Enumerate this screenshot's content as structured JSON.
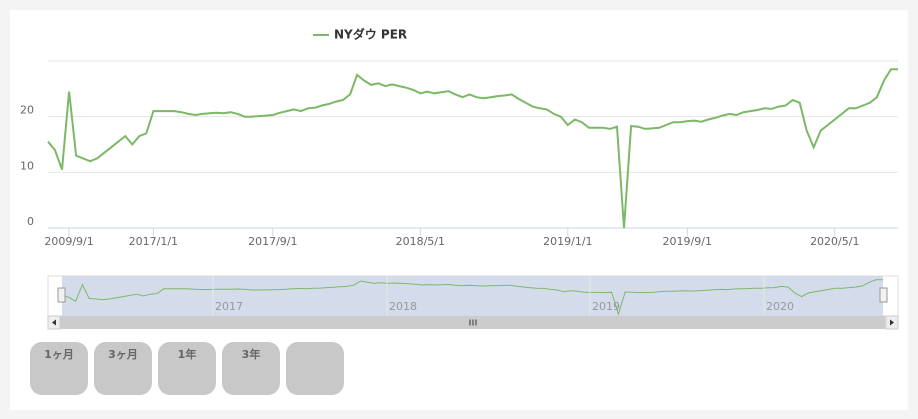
{
  "chart_data": {
    "type": "line",
    "legend_position": "top",
    "grid": true,
    "ylim": [
      0,
      30
    ],
    "yticks": [
      0,
      10,
      20
    ],
    "categories": [
      null,
      null,
      null,
      "2009/9/1",
      null,
      null,
      null,
      null,
      null,
      null,
      null,
      null,
      null,
      null,
      null,
      "2017/1/1",
      null,
      null,
      null,
      null,
      null,
      null,
      null,
      null,
      null,
      null,
      null,
      null,
      null,
      null,
      null,
      null,
      "2017/9/1",
      null,
      null,
      null,
      null,
      null,
      null,
      null,
      null,
      null,
      null,
      null,
      null,
      null,
      null,
      null,
      null,
      null,
      null,
      null,
      null,
      "2018/5/1",
      null,
      null,
      null,
      null,
      null,
      null,
      null,
      null,
      null,
      null,
      null,
      null,
      null,
      null,
      null,
      null,
      null,
      null,
      null,
      null,
      "2019/1/1",
      null,
      null,
      null,
      null,
      null,
      null,
      null,
      null,
      null,
      null,
      null,
      null,
      null,
      null,
      null,
      null,
      "2019/9/1",
      null,
      null,
      null,
      null,
      null,
      null,
      null,
      null,
      null,
      null,
      null,
      null,
      null,
      null,
      null,
      null,
      null,
      null,
      null,
      null,
      "2020/5/1",
      null,
      null,
      null,
      null,
      null,
      null,
      null,
      null,
      null
    ],
    "series": [
      {
        "name": "NYダウ PER",
        "color": "#7cb867",
        "values": [
          15.5,
          14,
          10.5,
          24.5,
          13,
          12.5,
          12,
          12.5,
          13.5,
          14.5,
          15.5,
          16.5,
          15,
          16.5,
          17,
          21,
          21,
          21,
          21,
          20.8,
          20.5,
          20.3,
          20.5,
          20.6,
          20.7,
          20.6,
          20.8,
          20.5,
          20,
          20,
          20.1,
          20.2,
          20.3,
          20.7,
          21,
          21.3,
          21,
          21.5,
          21.6,
          22,
          22.3,
          22.7,
          23,
          24,
          27.5,
          26.5,
          25.7,
          26,
          25.5,
          25.8,
          25.5,
          25.2,
          24.8,
          24.2,
          24.5,
          24.2,
          24.4,
          24.6,
          24,
          23.5,
          24,
          23.5,
          23.3,
          23.5,
          23.7,
          23.8,
          24,
          23.2,
          22.5,
          21.8,
          21.5,
          21.3,
          20.5,
          20,
          18.5,
          19.5,
          19,
          18,
          18,
          18,
          17.8,
          18.2,
          0,
          18.3,
          18.2,
          17.8,
          17.9,
          18,
          18.5,
          19,
          19,
          19.2,
          19.3,
          19.1,
          19.5,
          19.8,
          20.2,
          20.5,
          20.3,
          20.8,
          21,
          21.2,
          21.5,
          21.4,
          21.8,
          22,
          23,
          22.5,
          17.5,
          14.5,
          17.5,
          18.5,
          19.5,
          20.5,
          21.5,
          21.5,
          22,
          22.5,
          23.5,
          26.5,
          28.5,
          28.5
        ]
      }
    ],
    "navigator": {
      "labels": [
        "2017",
        "2018",
        "2019",
        "2020"
      ]
    },
    "range_buttons": [
      "1ヶ月",
      "3ヶ月",
      "1年",
      "3年"
    ]
  }
}
